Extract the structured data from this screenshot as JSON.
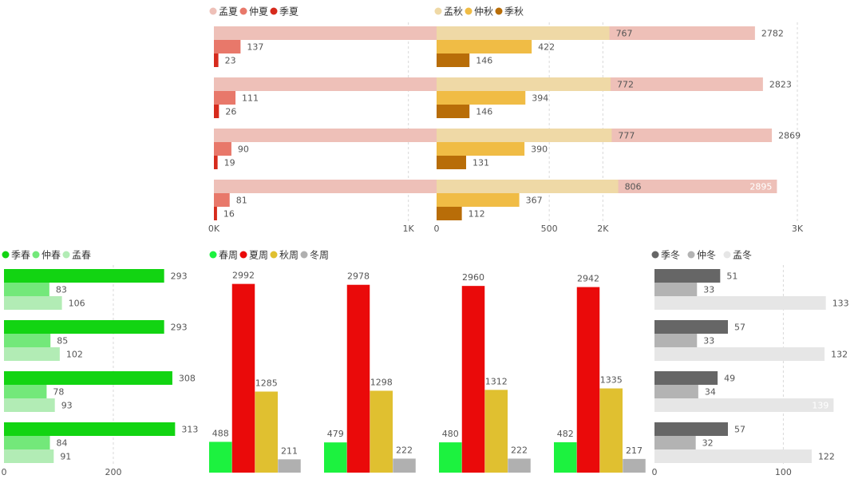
{
  "chart_data": [
    {
      "id": "summer",
      "type": "bar",
      "orientation": "horizontal",
      "legend_position": "top-left",
      "series": [
        {
          "name": "孟夏",
          "color": "#eec0b8",
          "values": [
            2782,
            2823,
            2869,
            2895
          ]
        },
        {
          "name": "仲夏",
          "color": "#e8786a",
          "values": [
            137,
            111,
            90,
            81
          ]
        },
        {
          "name": "季夏",
          "color": "#d62a1c",
          "values": [
            23,
            26,
            19,
            16
          ]
        }
      ],
      "xlim": [
        0,
        3000
      ],
      "xticks": [
        {
          "value": 0,
          "label": "0K"
        },
        {
          "value": 1000,
          "label": "1K"
        },
        {
          "value": 2000,
          "label": "2K"
        },
        {
          "value": 3000,
          "label": "3K"
        }
      ],
      "grid": true
    },
    {
      "id": "autumn",
      "type": "bar",
      "orientation": "horizontal",
      "legend_position": "top-left",
      "series": [
        {
          "name": "孟秋",
          "color": "#efd9a6",
          "values": [
            767,
            772,
            777,
            806
          ]
        },
        {
          "name": "仲秋",
          "color": "#f0bc45",
          "values": [
            422,
            394,
            390,
            367
          ]
        },
        {
          "name": "季秋",
          "color": "#b86d08",
          "values": [
            146,
            146,
            131,
            112
          ]
        }
      ],
      "xlim": [
        0,
        850
      ],
      "xticks": [
        {
          "value": 0,
          "label": "0"
        },
        {
          "value": 500,
          "label": "500"
        }
      ],
      "grid": true
    },
    {
      "id": "spring",
      "type": "bar",
      "orientation": "horizontal",
      "legend_position": "top-left",
      "series": [
        {
          "name": "季春",
          "color": "#12d412",
          "values": [
            293,
            293,
            308,
            313
          ]
        },
        {
          "name": "仲春",
          "color": "#73e87a",
          "values": [
            83,
            85,
            78,
            84
          ]
        },
        {
          "name": "孟春",
          "color": "#b2ecb5",
          "values": [
            106,
            102,
            93,
            91
          ]
        }
      ],
      "xlim": [
        0,
        330
      ],
      "xticks": [
        {
          "value": 0,
          "label": "0"
        },
        {
          "value": 200,
          "label": "200"
        }
      ],
      "grid": true
    },
    {
      "id": "weeks",
      "type": "bar",
      "orientation": "vertical",
      "legend_position": "top-left",
      "series": [
        {
          "name": "春周",
          "color": "#1cf23f",
          "values": [
            488,
            479,
            480,
            482
          ]
        },
        {
          "name": "夏周",
          "color": "#ea0a0a",
          "values": [
            2992,
            2978,
            2960,
            2942
          ]
        },
        {
          "name": "秋周",
          "color": "#e0c030",
          "values": [
            1285,
            1298,
            1312,
            1335
          ]
        },
        {
          "name": "冬周",
          "color": "#b0b0b0",
          "values": [
            211,
            222,
            222,
            217
          ]
        }
      ],
      "ylim": [
        0,
        3000
      ],
      "grid": false
    },
    {
      "id": "winter",
      "type": "bar",
      "orientation": "horizontal",
      "legend_position": "top-left",
      "series": [
        {
          "name": "季冬",
          "color": "#666666",
          "values": [
            51,
            57,
            49,
            57
          ]
        },
        {
          "name": "仲冬",
          "color": "#b3b3b3",
          "values": [
            33,
            33,
            34,
            32
          ]
        },
        {
          "name": "孟冬",
          "color": "#e6e6e6",
          "values": [
            133,
            132,
            139,
            122
          ]
        }
      ],
      "xlim": [
        0,
        140
      ],
      "xticks": [
        {
          "value": 0,
          "label": "0"
        },
        {
          "value": 100,
          "label": "100"
        }
      ],
      "grid": true
    }
  ]
}
